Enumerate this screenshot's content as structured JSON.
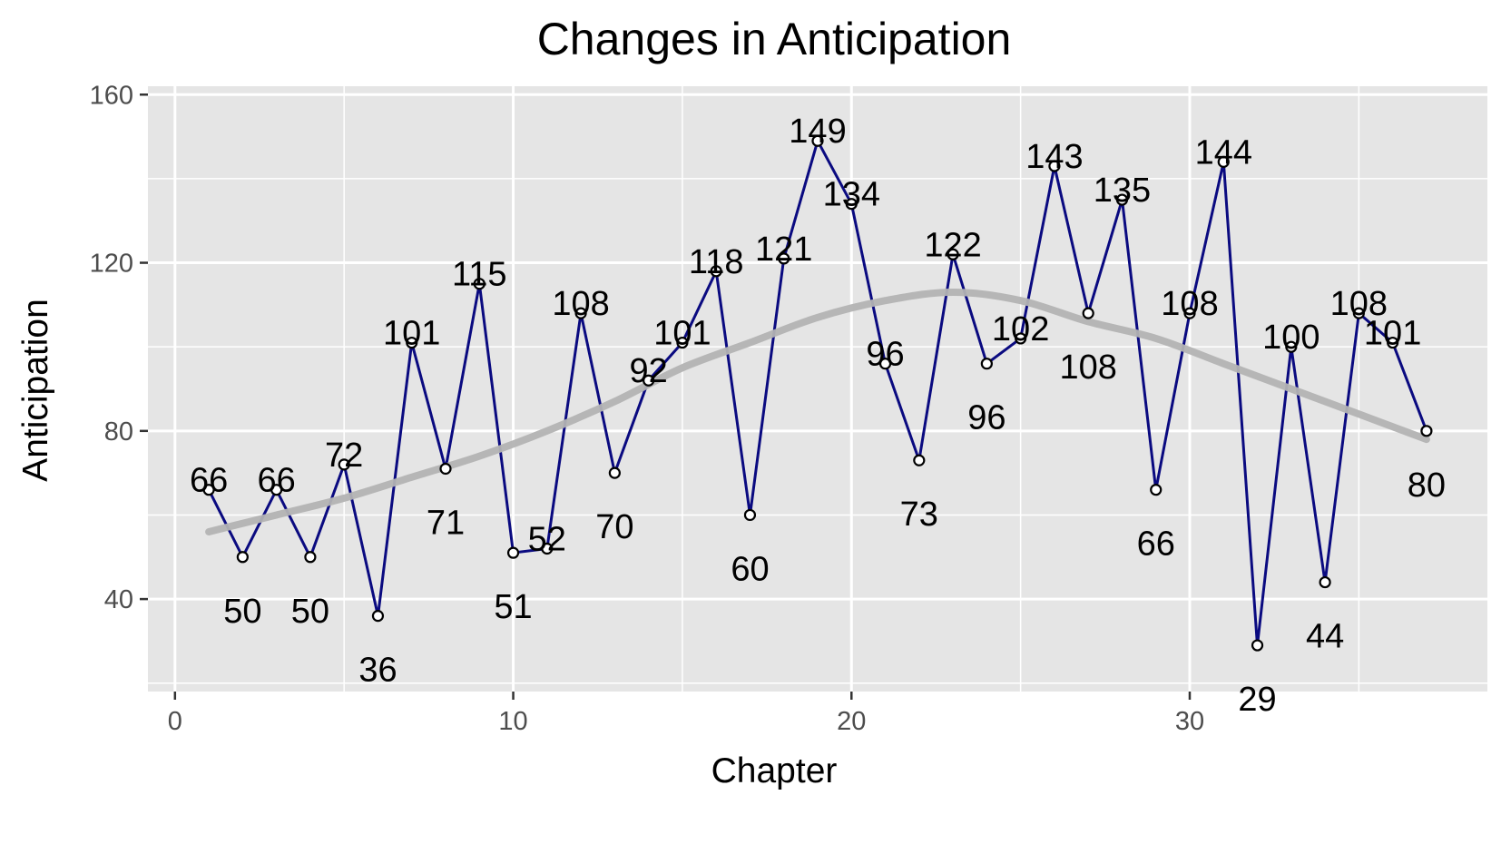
{
  "chart_data": {
    "type": "line",
    "title": "Changes in Anticipation",
    "xlabel": "Chapter",
    "ylabel": "Anticipation",
    "xlim": [
      -0.8,
      38.8
    ],
    "ylim": [
      18,
      162
    ],
    "x_ticks": [
      0,
      10,
      20,
      30
    ],
    "y_ticks": [
      40,
      80,
      120,
      160
    ],
    "x_tick_labels": [
      "0",
      "10",
      "20",
      "30"
    ],
    "y_tick_labels": [
      "40",
      "80",
      "120",
      "160"
    ],
    "grid": true,
    "legend": "none",
    "colors": {
      "panel": "#e5e5e5",
      "grid": "#ffffff",
      "line": "#0a0a80",
      "point_fill": "#ffffff",
      "point_stroke": "#000000",
      "smooth": "#b3b3b3"
    },
    "series": [
      {
        "x": [
          1,
          2,
          3,
          4,
          5,
          6,
          7,
          8,
          9,
          10,
          11,
          12,
          13,
          14,
          15,
          16,
          17,
          18,
          19,
          20,
          21,
          22,
          23,
          24,
          25,
          26,
          27,
          28,
          29,
          30,
          31,
          32,
          33,
          34,
          35,
          36,
          37
        ],
        "values": [
          66,
          50,
          66,
          50,
          72,
          36,
          101,
          71,
          115,
          51,
          52,
          108,
          70,
          92,
          101,
          118,
          60,
          121,
          149,
          134,
          96,
          73,
          122,
          96,
          102,
          143,
          108,
          135,
          66,
          108,
          144,
          29,
          100,
          44,
          108,
          101,
          80
        ],
        "labels": [
          "66",
          "50",
          "66",
          "50",
          "72",
          "36",
          "101",
          "71",
          "115",
          "51",
          "52",
          "108",
          "70",
          "92",
          "101",
          "118",
          "60",
          "121",
          "149",
          "134",
          "96",
          "73",
          "122",
          "96",
          "102",
          "143",
          "108",
          "135",
          "66",
          "108",
          "144",
          "29",
          "100",
          "44",
          "108",
          "101",
          "80"
        ]
      }
    ],
    "smooth": {
      "x": [
        1,
        3,
        5,
        7,
        9,
        11,
        13,
        15,
        17,
        19,
        21,
        23,
        25,
        27,
        29,
        31,
        33,
        35,
        37
      ],
      "values": [
        56,
        60,
        64,
        69,
        74,
        80,
        87,
        95,
        101,
        107,
        111,
        113,
        111,
        106,
        102,
        96,
        90,
        84,
        78
      ]
    }
  }
}
